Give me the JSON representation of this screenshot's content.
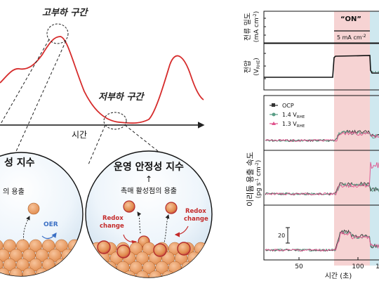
{
  "left_diagram": {
    "high_load_label": "고부하 구간",
    "low_load_label": "저부하 구간",
    "time_axis_label": "시간",
    "bubble_left": {
      "title": "성 지수",
      "subtitle": "의 용출",
      "oer_label": "OER"
    },
    "bubble_right": {
      "title": "운영 안정성 지수",
      "arrow": "↑",
      "subtitle": "촉매 활성점의 용출",
      "redox_label_left": "Redox\nchange",
      "redox_label_right": "Redox\nchange"
    }
  },
  "right_panel": {
    "current_panel": {
      "ylabel": "전류 밀도",
      "ylabel_unit": "(mA cm",
      "ylabel_unit_sup": "-2",
      "ylabel_unit_end": ")",
      "on_label": "“ON”",
      "scale_label": "5 mA cm",
      "scale_sup": "-2"
    },
    "voltage_panel": {
      "ylabel": "전압",
      "ylabel_unit": "(V",
      "ylabel_unit_sub": "RHE",
      "ylabel_unit_end": ")"
    },
    "dissolution_panel": {
      "ylabel_ko": "이리듐 용출 속도",
      "ylabel_unit": "(pg s",
      "ylabel_unit_sup1": "-1",
      "ylabel_unit_mid": " cm",
      "ylabel_unit_sup2": "-2",
      "ylabel_unit_end": ")",
      "legend": [
        {
          "label": "OCP",
          "color": "#333333"
        },
        {
          "label": "1.4 V",
          "sub": "RHE",
          "color": "#5a9e86"
        },
        {
          "label": "1.3 V",
          "sub": "RHE",
          "color": "#e0528c"
        }
      ],
      "scale_bar_label": "20"
    },
    "x_axis": {
      "label": "시간 (초)",
      "ticks": [
        "50",
        "100",
        "1"
      ]
    }
  },
  "colors": {
    "curve": "#d62b2b",
    "on_shade": "#f6d3d3",
    "off_shade": "#cfe8ef",
    "particle": "#f0a56e",
    "particle_edge": "#b5642b",
    "ocp": "#333333",
    "v14": "#5a9e86",
    "v13": "#e0528c"
  }
}
